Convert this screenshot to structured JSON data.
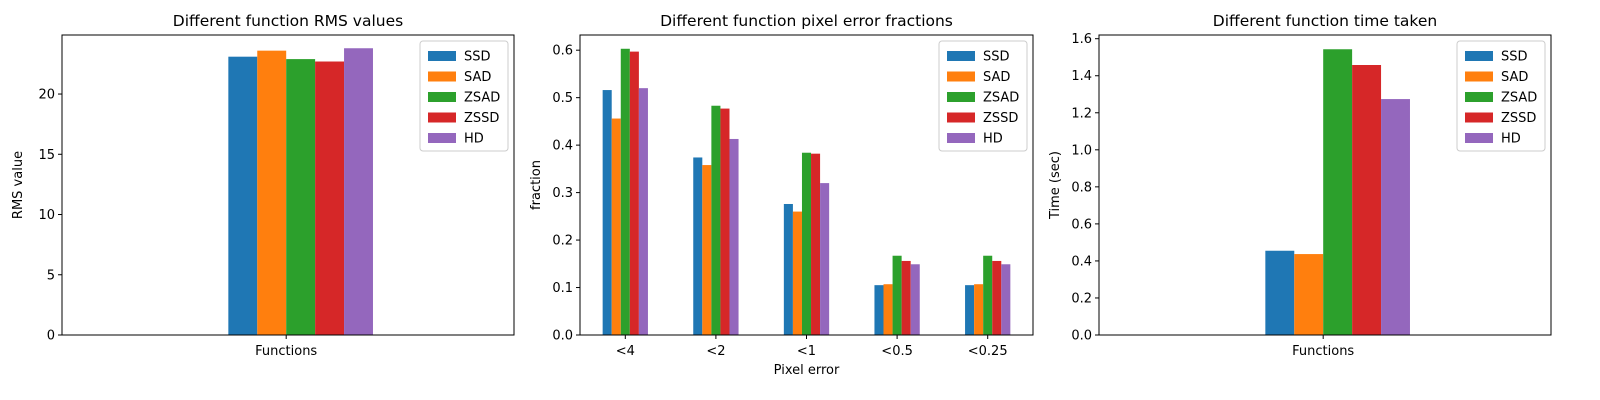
{
  "series_colors": {
    "SSD": "#1f77b4",
    "SAD": "#ff7f0e",
    "ZSAD": "#2ca02c",
    "ZSSD": "#d62728",
    "HD": "#9467bd"
  },
  "chart_data": [
    {
      "type": "bar",
      "title": "Different function RMS values",
      "xlabel": "",
      "ylabel": "RMS value",
      "categories": [
        "Functions"
      ],
      "ylim": [
        0,
        24.9
      ],
      "yticks": [
        0,
        5,
        10,
        15,
        20
      ],
      "ytick_labels": [
        "0",
        "5",
        "10",
        "15",
        "20"
      ],
      "legend": "top-right",
      "grid": false,
      "series": [
        {
          "name": "SSD",
          "values": [
            23.1
          ]
        },
        {
          "name": "SAD",
          "values": [
            23.6
          ]
        },
        {
          "name": "ZSAD",
          "values": [
            22.9
          ]
        },
        {
          "name": "ZSSD",
          "values": [
            22.7
          ]
        },
        {
          "name": "HD",
          "values": [
            23.8
          ]
        }
      ]
    },
    {
      "type": "bar",
      "title": "Different function pixel error fractions",
      "xlabel": "Pixel error",
      "ylabel": "fraction",
      "categories": [
        "<4",
        "<2",
        "<1",
        "<0.5",
        "<0.25"
      ],
      "ylim": [
        0,
        0.632
      ],
      "yticks": [
        0,
        0.1,
        0.2,
        0.3,
        0.4,
        0.5,
        0.6
      ],
      "ytick_labels": [
        "0.0",
        "0.1",
        "0.2",
        "0.3",
        "0.4",
        "0.5",
        "0.6"
      ],
      "legend": "top-right",
      "grid": false,
      "series": [
        {
          "name": "SSD",
          "values": [
            0.516,
            0.374,
            0.276,
            0.105,
            0.105
          ]
        },
        {
          "name": "SAD",
          "values": [
            0.456,
            0.358,
            0.26,
            0.107,
            0.107
          ]
        },
        {
          "name": "ZSAD",
          "values": [
            0.603,
            0.483,
            0.384,
            0.167,
            0.167
          ]
        },
        {
          "name": "ZSSD",
          "values": [
            0.597,
            0.477,
            0.382,
            0.156,
            0.156
          ]
        },
        {
          "name": "HD",
          "values": [
            0.52,
            0.413,
            0.32,
            0.149,
            0.149
          ]
        }
      ]
    },
    {
      "type": "bar",
      "title": "Different function time taken",
      "xlabel": "",
      "ylabel": "Time (sec)",
      "categories": [
        "Functions"
      ],
      "ylim": [
        0,
        1.62
      ],
      "yticks": [
        0,
        0.2,
        0.4,
        0.6,
        0.8,
        1.0,
        1.2,
        1.4,
        1.6
      ],
      "ytick_labels": [
        "0.0",
        "0.2",
        "0.4",
        "0.6",
        "0.8",
        "1.0",
        "1.2",
        "1.4",
        "1.6"
      ],
      "legend": "top-right",
      "grid": false,
      "series": [
        {
          "name": "SSD",
          "values": [
            0.455
          ]
        },
        {
          "name": "SAD",
          "values": [
            0.437
          ]
        },
        {
          "name": "ZSAD",
          "values": [
            1.543
          ]
        },
        {
          "name": "ZSSD",
          "values": [
            1.458
          ]
        },
        {
          "name": "HD",
          "values": [
            1.274
          ]
        }
      ]
    }
  ]
}
